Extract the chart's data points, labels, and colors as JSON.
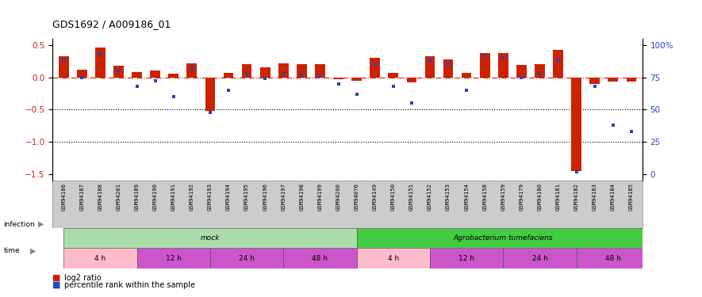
{
  "title": "GDS1692 / A009186_01",
  "samples": [
    "GSM94186",
    "GSM94187",
    "GSM94188",
    "GSM94201",
    "GSM94189",
    "GSM94190",
    "GSM94191",
    "GSM94192",
    "GSM94193",
    "GSM94194",
    "GSM94195",
    "GSM94196",
    "GSM94197",
    "GSM94198",
    "GSM94199",
    "GSM94200",
    "GSM94076",
    "GSM94149",
    "GSM94150",
    "GSM94151",
    "GSM94152",
    "GSM94153",
    "GSM94154",
    "GSM94158",
    "GSM94159",
    "GSM94179",
    "GSM94180",
    "GSM94181",
    "GSM94182",
    "GSM94183",
    "GSM94184",
    "GSM94185"
  ],
  "log2_ratio": [
    0.33,
    0.12,
    0.46,
    0.18,
    0.08,
    0.1,
    0.06,
    0.22,
    -0.52,
    0.07,
    0.2,
    0.16,
    0.22,
    0.21,
    0.2,
    -0.03,
    -0.05,
    0.3,
    0.07,
    -0.08,
    0.33,
    0.28,
    0.07,
    0.38,
    0.38,
    0.19,
    0.21,
    0.42,
    -1.45,
    -0.1,
    -0.07,
    -0.07
  ],
  "percentile": [
    88,
    75,
    93,
    80,
    68,
    72,
    60,
    82,
    48,
    65,
    78,
    74,
    78,
    77,
    76,
    70,
    62,
    85,
    68,
    55,
    88,
    85,
    65,
    92,
    90,
    75,
    78,
    88,
    2,
    68,
    38,
    33
  ],
  "ylim_left": [
    -1.6,
    0.6
  ],
  "yticks_left": [
    0.5,
    0.0,
    -0.5,
    -1.0,
    -1.5
  ],
  "yticks_right": [
    100,
    75,
    50,
    25,
    0
  ],
  "hlines_dotted": [
    -0.5,
    -1.0
  ],
  "hline_dash": 0.0,
  "bar_color": "#cc2200",
  "square_color": "#2244cc",
  "label_bg_color": "#cccccc",
  "infection_groups": [
    {
      "label": "mock",
      "start": 0,
      "end": 16,
      "color": "#aaddaa"
    },
    {
      "label": "Agrobacterium tumefaciens",
      "start": 16,
      "end": 32,
      "color": "#44cc44"
    }
  ],
  "time_groups": [
    {
      "label": "4 h",
      "start": 0,
      "end": 4,
      "color": "#ffbbcc"
    },
    {
      "label": "12 h",
      "start": 4,
      "end": 8,
      "color": "#cc55cc"
    },
    {
      "label": "24 h",
      "start": 8,
      "end": 12,
      "color": "#cc55cc"
    },
    {
      "label": "48 h",
      "start": 12,
      "end": 16,
      "color": "#cc55cc"
    },
    {
      "label": "4 h",
      "start": 16,
      "end": 20,
      "color": "#ffbbcc"
    },
    {
      "label": "12 h",
      "start": 20,
      "end": 24,
      "color": "#cc55cc"
    },
    {
      "label": "24 h",
      "start": 24,
      "end": 28,
      "color": "#cc55cc"
    },
    {
      "label": "48 h",
      "start": 28,
      "end": 32,
      "color": "#cc55cc"
    }
  ],
  "legend_red_label": "log2 ratio",
  "legend_blue_label": "percentile rank within the sample"
}
